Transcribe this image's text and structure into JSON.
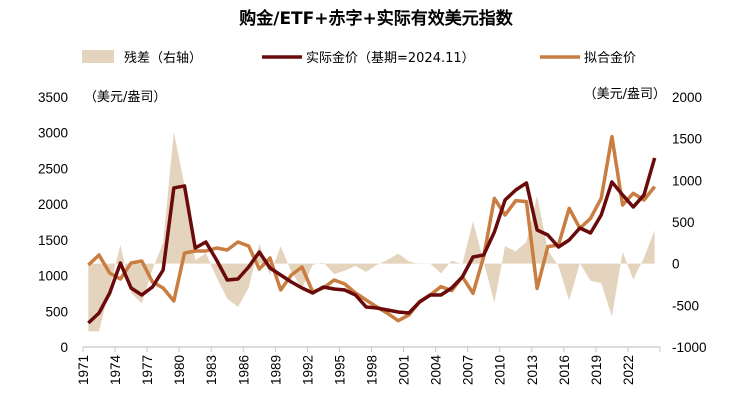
{
  "title": "购金/ETF+赤字+实际有效美元指数",
  "chart_data": {
    "type": "line",
    "title": "购金/ETF+赤字+实际有效美元指数",
    "left_unit": "（美元/盎司）",
    "right_unit": "（美元/盎司）",
    "left_ylim": [
      0,
      3500
    ],
    "left_yticks": [
      0,
      500,
      1000,
      1500,
      2000,
      2500,
      3000,
      3500
    ],
    "right_ylim": [
      -1000,
      2000
    ],
    "right_yticks": [
      -1000,
      -500,
      0,
      500,
      1000,
      1500,
      2000
    ],
    "x_tick_labels": [
      "1971",
      "1974",
      "1977",
      "1980",
      "1983",
      "1986",
      "1989",
      "1992",
      "1995",
      "1998",
      "2001",
      "2004",
      "2007",
      "2010",
      "2013",
      "2016",
      "2019",
      "2022"
    ],
    "grid": false,
    "legend_position": "top",
    "x": [
      1971,
      1972,
      1973,
      1974,
      1975,
      1976,
      1977,
      1978,
      1979,
      1980,
      1981,
      1982,
      1983,
      1984,
      1985,
      1986,
      1987,
      1988,
      1989,
      1990,
      1991,
      1992,
      1993,
      1994,
      1995,
      1996,
      1997,
      1998,
      1999,
      2000,
      2001,
      2002,
      2003,
      2004,
      2005,
      2006,
      2007,
      2008,
      2009,
      2010,
      2011,
      2012,
      2013,
      2014,
      2015,
      2016,
      2017,
      2018,
      2019,
      2020,
      2021,
      2022,
      2023,
      2024
    ],
    "series": [
      {
        "name": "残差（右轴）",
        "type": "area",
        "axis": "right",
        "color": "#e5d4bd",
        "values": [
          -812,
          -812,
          -280,
          224,
          -350,
          -476,
          -70,
          252,
          1583,
          939,
          42,
          126,
          -168,
          -420,
          -518,
          -294,
          238,
          -140,
          210,
          -98,
          -294,
          -14,
          14,
          -126,
          -84,
          -28,
          -98,
          -14,
          46,
          121,
          28,
          -5,
          0,
          -117,
          37,
          -5,
          509,
          23,
          -471,
          210,
          149,
          262,
          817,
          163,
          -28,
          -443,
          5,
          -205,
          -233,
          -634,
          141,
          -191,
          71,
          402
        ]
      },
      {
        "name": "实际金价（基期=2024.11）",
        "type": "line",
        "axis": "left",
        "color": "#6a0a0a",
        "values": [
          336,
          476,
          756,
          1176,
          826,
          728,
          840,
          1078,
          2227,
          2255,
          1386,
          1470,
          1218,
          938,
          952,
          1120,
          1330,
          1106,
          1008,
          910,
          826,
          756,
          840,
          812,
          798,
          728,
          560,
          546,
          518,
          490,
          476,
          630,
          728,
          728,
          826,
          980,
          1260,
          1288,
          1610,
          2058,
          2198,
          2297,
          1638,
          1568,
          1400,
          1498,
          1666,
          1596,
          1848,
          2311,
          2129,
          1960,
          2129,
          2647
        ]
      },
      {
        "name": "拟合金价",
        "type": "line",
        "axis": "left",
        "color": "#c97d40",
        "values": [
          1148,
          1288,
          1036,
          952,
          1176,
          1204,
          910,
          826,
          644,
          1316,
          1344,
          1344,
          1386,
          1358,
          1470,
          1414,
          1092,
          1246,
          798,
          1008,
          1120,
          770,
          826,
          938,
          882,
          756,
          658,
          560,
          472,
          369,
          448,
          635,
          728,
          845,
          789,
          985,
          751,
          1265,
          2081,
          1848,
          2049,
          2035,
          821,
          1405,
          1428,
          1941,
          1661,
          1801,
          2081,
          2945,
          1988,
          2151,
          2058,
          2245
        ]
      }
    ]
  }
}
